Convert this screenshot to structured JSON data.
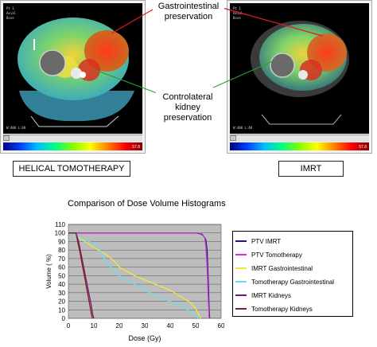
{
  "panels": {
    "left": {
      "label": "HELICAL TOMOTHERAPY",
      "colorbar_max": "57.8"
    },
    "right": {
      "label": "IMRT",
      "colorbar_max": "57.8"
    }
  },
  "annotations": {
    "gi": [
      "Gastrointestinal",
      "preservation"
    ],
    "kidney": [
      "Controlateral",
      "kidney",
      "preservation"
    ]
  },
  "colors": {
    "arrow_red": "#e41a1c",
    "arrow_green": "#2ca02c",
    "plot_bg": "#bdbdbd",
    "ptv_imrt": "#1a1a7a",
    "ptv_tomo": "#cc33cc",
    "imrt_gi": "#f2e640",
    "tomo_gi": "#66e0f0",
    "imrt_kid": "#6b1f6b",
    "tomo_kid": "#8b1a2a"
  },
  "chart_data": {
    "type": "line",
    "title": "Comparison of Dose Volume Histograms",
    "xlabel": "Dose (Gy)",
    "ylabel": "Volume ( %)",
    "xlim": [
      0,
      60
    ],
    "ylim": [
      0,
      110
    ],
    "xticks": [
      0,
      10,
      20,
      30,
      40,
      50,
      60
    ],
    "yticks": [
      0,
      10,
      20,
      30,
      40,
      50,
      60,
      70,
      80,
      90,
      100,
      110
    ],
    "grid": true,
    "legend_position": "right",
    "series": [
      {
        "name": "PTV IMRT",
        "color": "#1a1a7a",
        "x": [
          0,
          45,
          50,
          52,
          53,
          54,
          54.5,
          55,
          55.3,
          55.5
        ],
        "y": [
          100,
          100,
          100,
          99,
          97,
          92,
          80,
          40,
          10,
          0
        ]
      },
      {
        "name": "PTV Tomotherapy",
        "color": "#cc33cc",
        "x": [
          0,
          45,
          51,
          52.5,
          53.5,
          54,
          54.5,
          55,
          55.3
        ],
        "y": [
          100,
          100,
          100,
          99,
          95,
          85,
          60,
          20,
          0
        ]
      },
      {
        "name": "IMRT Gastrointestinal",
        "color": "#f2e640",
        "x": [
          0,
          2,
          4,
          6,
          8,
          10,
          13,
          16,
          18,
          20,
          23,
          26,
          30,
          35,
          40,
          45,
          48,
          50,
          51,
          52
        ],
        "y": [
          100,
          98,
          95,
          91,
          87,
          83,
          78,
          72,
          67,
          60,
          55,
          50,
          45,
          39,
          33,
          24,
          18,
          12,
          5,
          0
        ]
      },
      {
        "name": "Tomotherapy Gastrointestinal",
        "color": "#66e0f0",
        "x": [
          0,
          2,
          4,
          6,
          8,
          10,
          11,
          12,
          13,
          14,
          16,
          18,
          20,
          24,
          28,
          32,
          38,
          44,
          48,
          50,
          51
        ],
        "y": [
          100,
          98,
          96,
          93,
          90,
          88,
          86,
          82,
          77,
          70,
          62,
          56,
          50,
          43,
          37,
          30,
          22,
          15,
          8,
          3,
          0
        ]
      },
      {
        "name": "IMRT Kidneys",
        "color": "#6b1f6b",
        "x": [
          0,
          3,
          4,
          5,
          6,
          7,
          8,
          9,
          9.5,
          10
        ],
        "y": [
          100,
          100,
          90,
          75,
          60,
          45,
          30,
          15,
          5,
          0
        ]
      },
      {
        "name": "Tomotherapy Kidneys",
        "color": "#8b1a2a",
        "x": [
          0,
          3,
          3.5,
          4.5,
          5.5,
          6.5,
          7.5,
          8.5,
          9,
          9.5
        ],
        "y": [
          100,
          100,
          92,
          78,
          62,
          46,
          30,
          14,
          5,
          0
        ]
      }
    ]
  }
}
